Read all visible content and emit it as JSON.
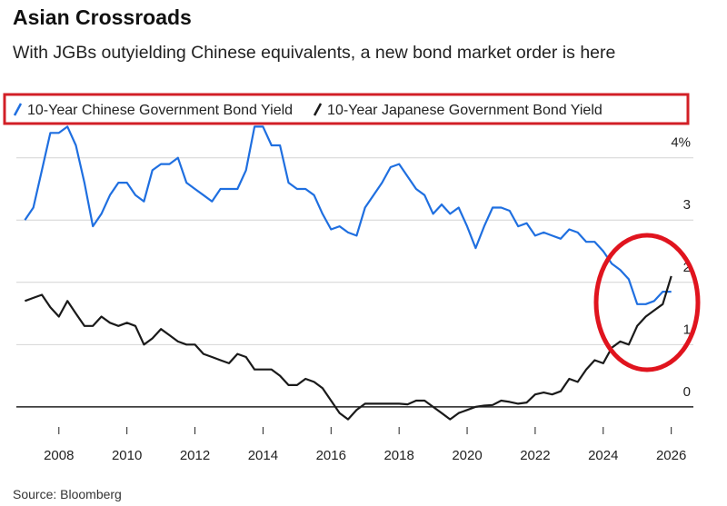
{
  "chart_data": {
    "type": "line",
    "title": "Asian Crossroads",
    "subtitle": "With JGBs outyielding Chinese equivalents, a new bond market order is here",
    "source": "Source: Bloomberg",
    "x": [
      2007.0,
      2007.25,
      2007.5,
      2007.75,
      2008.0,
      2008.25,
      2008.5,
      2008.75,
      2009.0,
      2009.25,
      2009.5,
      2009.75,
      2010.0,
      2010.25,
      2010.5,
      2010.75,
      2011.0,
      2011.25,
      2011.5,
      2011.75,
      2012.0,
      2012.25,
      2012.5,
      2012.75,
      2013.0,
      2013.25,
      2013.5,
      2013.75,
      2014.0,
      2014.25,
      2014.5,
      2014.75,
      2015.0,
      2015.25,
      2015.5,
      2015.75,
      2016.0,
      2016.25,
      2016.5,
      2016.75,
      2017.0,
      2017.25,
      2017.5,
      2017.75,
      2018.0,
      2018.25,
      2018.5,
      2018.75,
      2019.0,
      2019.25,
      2019.5,
      2019.75,
      2020.0,
      2020.25,
      2020.5,
      2020.75,
      2021.0,
      2021.25,
      2021.5,
      2021.75,
      2022.0,
      2022.25,
      2022.5,
      2022.75,
      2023.0,
      2023.25,
      2023.5,
      2023.75,
      2024.0,
      2024.25,
      2024.5,
      2024.75,
      2025.0,
      2025.25,
      2025.5,
      2025.75,
      2026.0
    ],
    "series": [
      {
        "name": "10-Year Chinese Government Bond Yield",
        "color": "#1f6fe0",
        "values": [
          3.0,
          3.2,
          3.8,
          4.4,
          4.4,
          4.5,
          4.2,
          3.6,
          2.9,
          3.1,
          3.4,
          3.6,
          3.6,
          3.4,
          3.3,
          3.8,
          3.9,
          3.9,
          4.0,
          3.6,
          3.5,
          3.4,
          3.3,
          3.5,
          3.5,
          3.5,
          3.8,
          4.5,
          4.5,
          4.2,
          4.2,
          3.6,
          3.5,
          3.5,
          3.4,
          3.1,
          2.85,
          2.9,
          2.8,
          2.75,
          3.2,
          3.4,
          3.6,
          3.85,
          3.9,
          3.7,
          3.5,
          3.4,
          3.1,
          3.25,
          3.1,
          3.2,
          2.9,
          2.55,
          2.9,
          3.2,
          3.2,
          3.15,
          2.9,
          2.95,
          2.75,
          2.8,
          2.75,
          2.7,
          2.85,
          2.8,
          2.65,
          2.65,
          2.5,
          2.3,
          2.2,
          2.05,
          1.65,
          1.65,
          1.7,
          1.85,
          1.85
        ]
      },
      {
        "name": "10-Year Japanese Government Bond Yield",
        "color": "#1a1a1a",
        "values": [
          1.7,
          1.75,
          1.8,
          1.6,
          1.45,
          1.7,
          1.5,
          1.3,
          1.3,
          1.45,
          1.35,
          1.3,
          1.35,
          1.3,
          1.0,
          1.1,
          1.25,
          1.15,
          1.05,
          1.0,
          1.0,
          0.85,
          0.8,
          0.75,
          0.7,
          0.85,
          0.8,
          0.6,
          0.6,
          0.6,
          0.5,
          0.35,
          0.35,
          0.45,
          0.4,
          0.3,
          0.1,
          -0.1,
          -0.2,
          -0.05,
          0.05,
          0.05,
          0.05,
          0.05,
          0.05,
          0.04,
          0.1,
          0.1,
          0.0,
          -0.1,
          -0.2,
          -0.1,
          -0.05,
          0.0,
          0.02,
          0.03,
          0.1,
          0.08,
          0.05,
          0.07,
          0.2,
          0.23,
          0.2,
          0.25,
          0.45,
          0.4,
          0.6,
          0.75,
          0.7,
          0.95,
          1.05,
          1.0,
          1.3,
          1.45,
          1.55,
          1.65,
          2.1
        ]
      }
    ],
    "xlim": [
      2006.75,
      2026.65
    ],
    "xticks": [
      2008,
      2010,
      2012,
      2014,
      2016,
      2018,
      2020,
      2022,
      2024,
      2026
    ],
    "ylim": [
      -0.25,
      4.55
    ],
    "yticks": [
      0,
      1,
      2,
      {
        "value": 4,
        "label": "4%"
      },
      3
    ],
    "grid": true
  }
}
